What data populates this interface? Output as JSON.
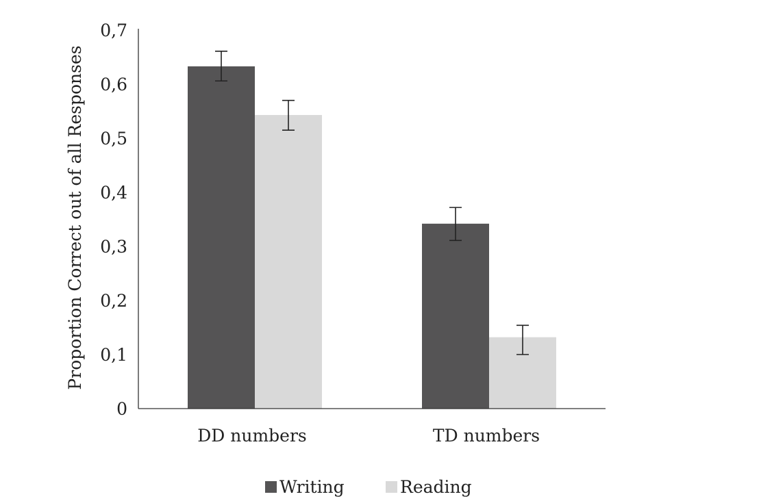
{
  "chart_data": {
    "type": "bar",
    "title": "",
    "xlabel": "",
    "ylabel": "Proportion Correct out of all Responses",
    "ylim": [
      0,
      0.7
    ],
    "yticks": [
      "0",
      "0,1",
      "0,2",
      "0,3",
      "0,4",
      "0,5",
      "0,6",
      "0,7"
    ],
    "ytick_values": [
      0,
      0.1,
      0.2,
      0.3,
      0.4,
      0.5,
      0.6,
      0.7
    ],
    "categories": [
      "DD numbers",
      "TD numbers"
    ],
    "grid": false,
    "legend_position": "bottom",
    "series": [
      {
        "name": "Writing",
        "color": "#555455",
        "values": [
          0.633,
          0.342
        ],
        "error_low": [
          0.606,
          0.311
        ],
        "error_high": [
          0.661,
          0.372
        ]
      },
      {
        "name": "Reading",
        "color": "#d9d9d9",
        "values": [
          0.543,
          0.132
        ],
        "error_low": [
          0.515,
          0.1
        ],
        "error_high": [
          0.57,
          0.154
        ]
      }
    ]
  }
}
